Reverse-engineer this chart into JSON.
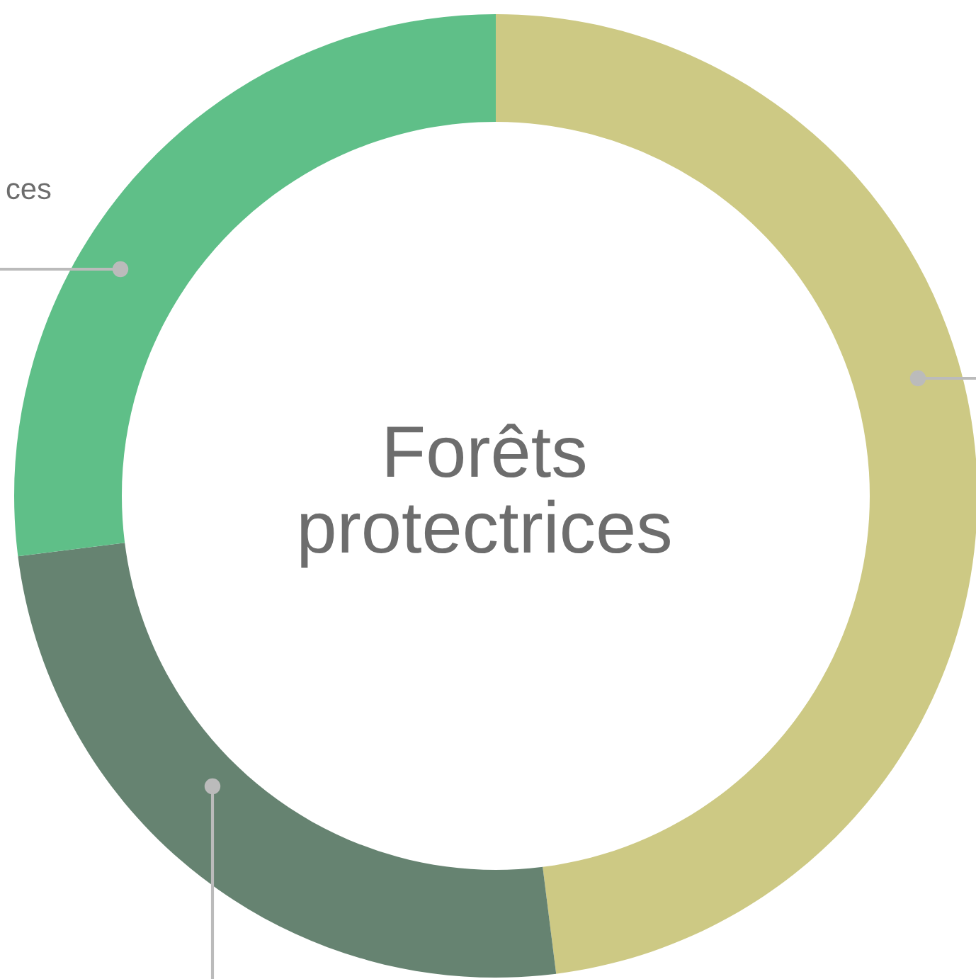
{
  "chart_data": {
    "type": "donut",
    "title": "Forêts\nprotectrices",
    "categories": [
      null,
      null,
      "ces"
    ],
    "values": [
      48,
      25,
      27
    ],
    "colors": [
      "#cdc984",
      "#668371",
      "#5fbf88"
    ]
  }
}
